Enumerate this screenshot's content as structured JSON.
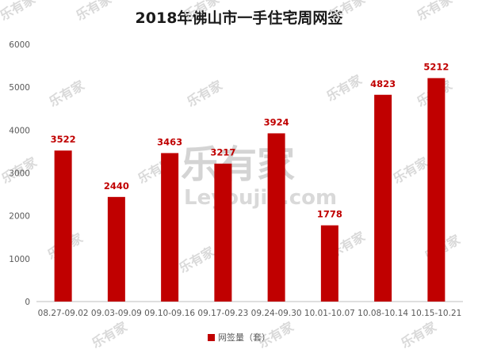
{
  "chart_data": {
    "type": "bar",
    "title": "2018年佛山市一手住宅周网签",
    "xlabel": "",
    "ylabel": "",
    "categories": [
      "08.27-09.02",
      "09.03-09.09",
      "09.10-09.16",
      "09.17-09.23",
      "09.24-09.30",
      "10.01-10.07",
      "10.08-10.14",
      "10.15-10.21"
    ],
    "series": [
      {
        "name": "网签量（套）",
        "values": [
          3522,
          2440,
          3463,
          3217,
          3924,
          1778,
          4823,
          5212
        ],
        "color": "#c00000"
      }
    ],
    "data_labels": [
      "3522",
      "2440",
      "3463",
      "3217",
      "3924",
      "1778",
      "4823",
      "5212"
    ],
    "ylim": [
      0,
      6000
    ],
    "yticks": [
      "0",
      "1000",
      "2000",
      "3000",
      "4000",
      "5000",
      "6000"
    ],
    "grid": false,
    "legend_position": "bottom"
  },
  "watermark": {
    "small_text": "乐有家",
    "big_text": "乐有家",
    "url_text": "Leyoujia.com"
  }
}
